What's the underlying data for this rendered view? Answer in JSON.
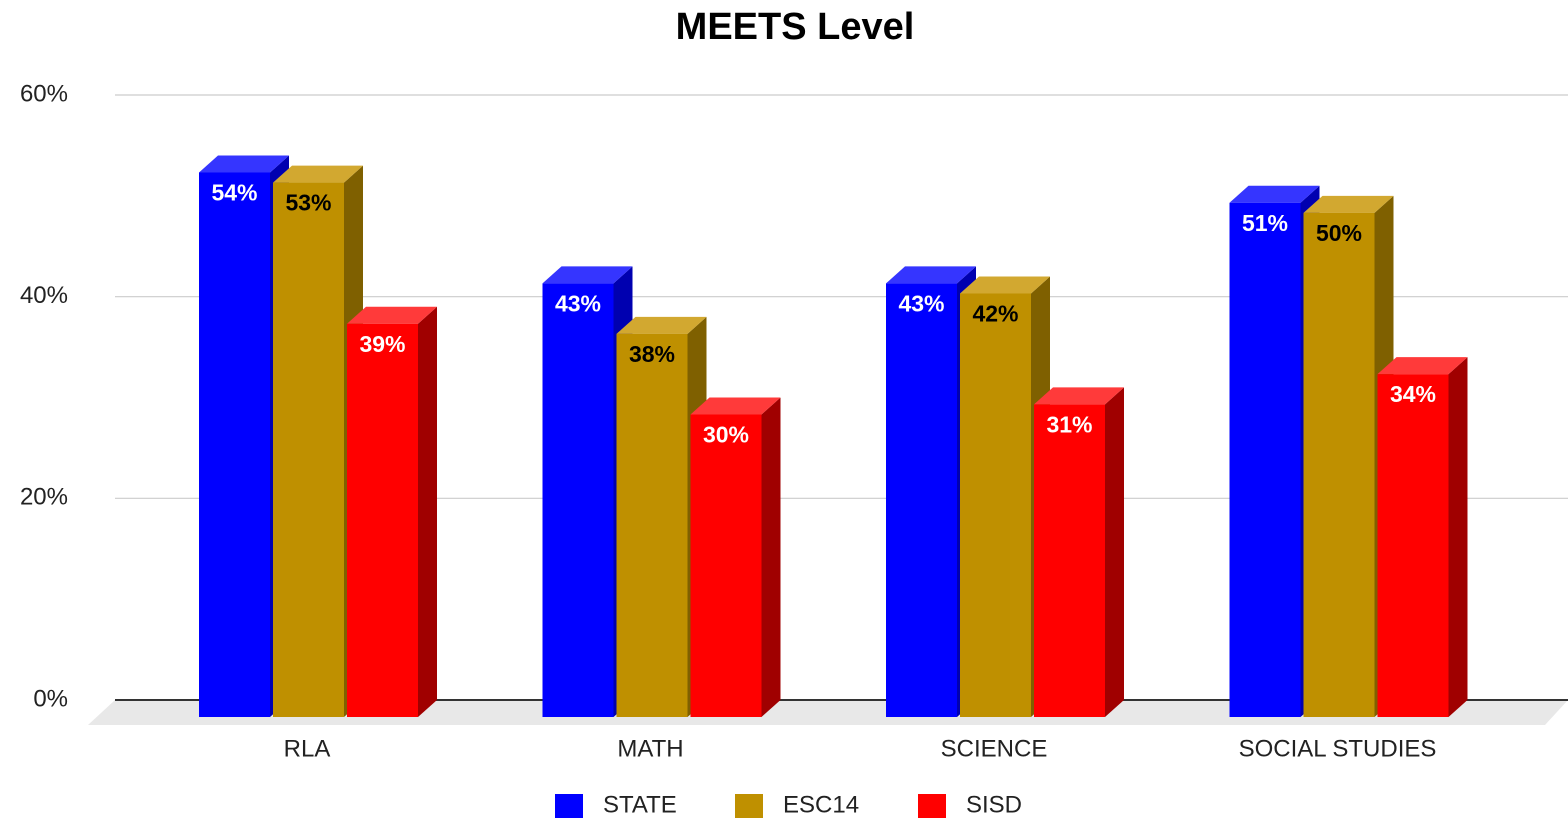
{
  "chart_data": {
    "type": "bar3d",
    "title": "MEETS Level",
    "categories": [
      "RLA",
      "MATH",
      "SCIENCE",
      "SOCIAL STUDIES"
    ],
    "series": [
      {
        "name": "STATE",
        "color": "#0000ff",
        "side_color": "#0000b0",
        "top_color": "#3535ff",
        "label_color": "#ffffff",
        "values": [
          54,
          43,
          43,
          51
        ],
        "value_labels": [
          "54%",
          "43%",
          "43%",
          "51%"
        ]
      },
      {
        "name": "ESC14",
        "color": "#bf9000",
        "side_color": "#7f6000",
        "top_color": "#d2a830",
        "label_color": "#000000",
        "values": [
          53,
          38,
          42,
          50
        ],
        "value_labels": [
          "53%",
          "38%",
          "42%",
          "50%"
        ]
      },
      {
        "name": "SISD",
        "color": "#ff0000",
        "side_color": "#a00000",
        "top_color": "#ff3a3a",
        "label_color": "#ffffff",
        "values": [
          39,
          30,
          31,
          34
        ],
        "value_labels": [
          "39%",
          "30%",
          "31%",
          "34%"
        ]
      }
    ],
    "ylim": [
      0,
      60
    ],
    "yticks": [
      {
        "value": 0,
        "label": "0%"
      },
      {
        "value": 20,
        "label": "20%"
      },
      {
        "value": 40,
        "label": "40%"
      },
      {
        "value": 60,
        "label": "60%"
      }
    ],
    "grid": true,
    "legend": "bottom"
  }
}
